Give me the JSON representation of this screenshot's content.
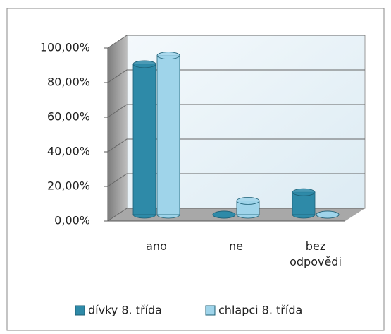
{
  "chart_data": {
    "type": "bar3d",
    "categories": [
      "ano",
      "ne",
      "bez odpovědi"
    ],
    "series": [
      {
        "name": "dívky 8. třída",
        "color": "#2e8aa8",
        "values": [
          87,
          0,
          13
        ]
      },
      {
        "name": "chlapci 8. třída",
        "color": "#9fd4ea",
        "values": [
          92,
          8,
          0
        ]
      }
    ],
    "ylim": [
      0,
      100
    ],
    "yticks": [
      {
        "value": 0,
        "label": "0,00%"
      },
      {
        "value": 20,
        "label": "20,00%"
      },
      {
        "value": 40,
        "label": "40,00%"
      },
      {
        "value": 60,
        "label": "60,00%"
      },
      {
        "value": 80,
        "label": "80,00%"
      },
      {
        "value": 100,
        "label": "100,00%"
      }
    ],
    "grid": true,
    "legend": "bottom"
  }
}
